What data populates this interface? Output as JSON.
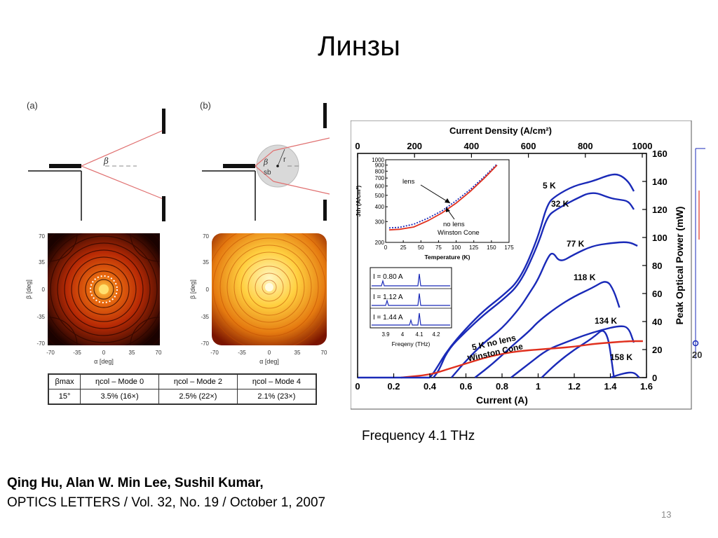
{
  "slide": {
    "title": "Линзы",
    "caption": "Frequency 4.1 THz",
    "authors": "Qing Hu, Alan W. Min Lee,  Sushil Kumar,",
    "journal": "OPTICS LETTERS / Vol. 32, No. 19 / October 1, 2007",
    "page_number": "13"
  },
  "figure_left": {
    "panel_a_label": "(a)",
    "panel_b_label": "(b)",
    "beta_symbol": "β",
    "r_label": "r",
    "sb_label": "sb",
    "map_y_ticks": [
      "70",
      "35",
      "0",
      "-35",
      "-70"
    ],
    "map_x_ticks": [
      "-70",
      "-35",
      "0",
      "35",
      "70"
    ],
    "map_xlabel": "α [deg]",
    "map_ylabel": "β [deg]",
    "table": {
      "headers": [
        "βmax",
        "ηcol – Mode 0",
        "ηcol – Mode 2",
        "ηcol – Mode 4"
      ],
      "row": [
        "15°",
        "3.5% (16×)",
        "2.5% (22×)",
        "2.1% (23×)"
      ]
    }
  },
  "chart_data": [
    {
      "type": "line",
      "title": "",
      "xlabel": "Current (A)",
      "x2label": "Current Density (A/cm²)",
      "ylabel": "Peak Optical Power (mW)",
      "xlim": [
        0,
        1.6
      ],
      "ylim": [
        0,
        160
      ],
      "x_ticks": [
        "0",
        "0.2",
        "0.4",
        "0.6",
        "0.8",
        "1",
        "1.2",
        "1.4",
        "1.6"
      ],
      "x2_ticks": [
        "0",
        "200",
        "400",
        "600",
        "800",
        "1000"
      ],
      "y_ticks": [
        "0",
        "20",
        "40",
        "60",
        "80",
        "100",
        "120",
        "140",
        "160"
      ],
      "series": [
        {
          "name": "5 K",
          "color": "#1a2ab8",
          "x": [
            0.4,
            0.43,
            0.5,
            0.6,
            0.7,
            0.8,
            0.9,
            1.0,
            1.05,
            1.1,
            1.2,
            1.3,
            1.4,
            1.45,
            1.5,
            1.53
          ],
          "y": [
            0,
            5,
            20,
            35,
            48,
            58,
            70,
            100,
            124,
            130,
            137,
            140,
            145,
            145,
            140,
            133
          ]
        },
        {
          "name": "32 K",
          "color": "#1a2ab8",
          "x": [
            0.42,
            0.45,
            0.5,
            0.6,
            0.7,
            0.8,
            0.9,
            1.0,
            1.05,
            1.1,
            1.2,
            1.3,
            1.4,
            1.45,
            1.5,
            1.53
          ],
          "y": [
            0,
            5,
            20,
            33,
            45,
            55,
            67,
            95,
            115,
            120,
            127,
            133,
            128,
            127,
            126,
            120
          ]
        },
        {
          "name": "77 K",
          "color": "#1a2ab8",
          "x": [
            0.52,
            0.6,
            0.7,
            0.8,
            0.9,
            0.95,
            1.0,
            1.05,
            1.08,
            1.12,
            1.2,
            1.3,
            1.4,
            1.5,
            1.55
          ],
          "y": [
            0,
            12,
            25,
            35,
            50,
            60,
            70,
            85,
            90,
            82,
            88,
            94,
            96,
            97,
            94
          ]
        },
        {
          "name": "118 K",
          "color": "#1a2ab8",
          "x": [
            0.65,
            0.75,
            0.85,
            0.95,
            1.0,
            1.1,
            1.2,
            1.3,
            1.38,
            1.42,
            1.45
          ],
          "y": [
            0,
            10,
            22,
            33,
            40,
            50,
            58,
            64,
            70,
            62,
            50
          ]
        },
        {
          "name": "134 K",
          "color": "#1a2ab8",
          "x": [
            0.85,
            0.95,
            1.05,
            1.15,
            1.25,
            1.35,
            1.45,
            1.5,
            1.53
          ],
          "y": [
            0,
            10,
            20,
            25,
            30,
            34,
            37,
            36,
            25
          ]
        },
        {
          "name": "158 K",
          "color": "#1a2ab8",
          "x": [
            1.02,
            1.1,
            1.2,
            1.3,
            1.38,
            1.42
          ],
          "y": [
            0,
            10,
            20,
            28,
            37,
            0
          ]
        },
        {
          "name": "",
          "color": "#1a2ab8",
          "x": [
            1.4,
            1.47,
            1.53,
            1.56
          ],
          "y": [
            0,
            3,
            4,
            0
          ]
        },
        {
          "name": "5 K no lens Winston Cone",
          "color": "#e0301e",
          "x": [
            0.24,
            0.4,
            0.5,
            0.6,
            0.7,
            0.8,
            0.9,
            1.0,
            1.1,
            1.2,
            1.3,
            1.4,
            1.5,
            1.58
          ],
          "y": [
            0,
            2,
            6,
            10,
            14,
            17,
            19,
            20,
            21,
            22,
            24,
            25,
            26,
            26
          ]
        }
      ],
      "labels": {
        "l5k": "5 K",
        "l32k": "32 K",
        "l77k": "77 K",
        "l118k": "118 K",
        "l134k": "134 K",
        "l158k": "158 K",
        "nolens1": "5 K no lens",
        "nolens2": "Winston Cone"
      }
    },
    {
      "type": "line",
      "title": "",
      "xlabel": "Temperature (K)",
      "ylabel": "Jth (A/cm²)",
      "xlim": [
        0,
        175
      ],
      "ylim": [
        200,
        1000
      ],
      "log_y": true,
      "x_ticks": [
        "0",
        "25",
        "50",
        "75",
        "100",
        "125",
        "150",
        "175"
      ],
      "y_ticks": [
        "1000",
        "900",
        "800",
        "700",
        "600",
        "500",
        "400",
        "300",
        "200"
      ],
      "series": [
        {
          "name": "lens",
          "color": "#1a2ab8",
          "x": [
            5,
            20,
            40,
            60,
            80,
            100,
            120,
            140,
            158
          ],
          "y": [
            265,
            268,
            285,
            320,
            370,
            450,
            560,
            720,
            920
          ]
        },
        {
          "name": "no lens Winston Cone",
          "color": "#e0301e",
          "x": [
            5,
            20,
            40,
            60,
            80,
            100,
            120,
            140,
            158
          ],
          "y": [
            255,
            258,
            270,
            305,
            355,
            430,
            540,
            700,
            900
          ]
        }
      ],
      "labels": {
        "lens": "lens",
        "nolens": "no lens",
        "winston": "Winston Cone"
      }
    },
    {
      "type": "line",
      "title": "",
      "xlabel": "Freqeny (THz)",
      "x_ticks": [
        "3.9",
        "4",
        "4.1",
        "4.2"
      ],
      "series": [
        {
          "name": "I = 0.80 A"
        },
        {
          "name": "I = 1.12 A"
        },
        {
          "name": "I = 1.44 A"
        }
      ]
    }
  ],
  "colors": {
    "blue": "#1a2ab8",
    "red": "#e0301e",
    "ray": "#e07070"
  }
}
